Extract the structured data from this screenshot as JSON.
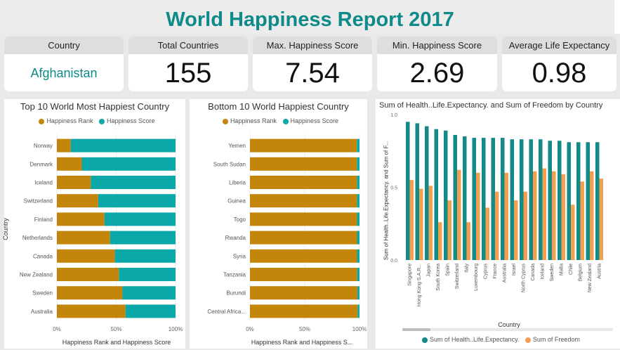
{
  "report": {
    "title": "World Happiness Report 2017"
  },
  "cards": [
    {
      "label": "Country",
      "value": "Afghanistan"
    },
    {
      "label": "Total Countries",
      "value": "155"
    },
    {
      "label": "Max. Happiness Score",
      "value": "7.54"
    },
    {
      "label": "Min. Happiness Score",
      "value": "2.69"
    },
    {
      "label": "Average Life Expectancy",
      "value": "0.98"
    }
  ],
  "colors": {
    "rank": "#c4860a",
    "score": "#0aa8a8",
    "health": "#138a86",
    "freedom": "#f0a050"
  },
  "chart_data": [
    {
      "type": "bar",
      "orientation": "horizontal",
      "stacked": "100%",
      "title": "Top 10 World Most Happiest Country",
      "xlabel": "Happiness Rank and Happiness Score",
      "ylabel": "Country",
      "xticks": [
        "0%",
        "50%",
        "100%"
      ],
      "categories": [
        "Norway",
        "Denmark",
        "Iceland",
        "Switzerland",
        "Finland",
        "Netherlands",
        "Canada",
        "New Zealand",
        "Sweden",
        "Australia"
      ],
      "series": [
        {
          "name": "Happiness Rank",
          "values": [
            1,
            2,
            3,
            4,
            5,
            6,
            7,
            8,
            9,
            10
          ]
        },
        {
          "name": "Happiness Score",
          "values": [
            7.54,
            7.52,
            7.5,
            7.49,
            7.47,
            7.38,
            7.32,
            7.31,
            7.28,
            7.28
          ]
        }
      ]
    },
    {
      "type": "bar",
      "orientation": "horizontal",
      "stacked": "100%",
      "title": "Bottom 10 World Happiest Country",
      "xlabel": "Happiness Rank and Happiness S...",
      "ylabel": "",
      "xticks": [
        "0%",
        "50%",
        "100%"
      ],
      "categories": [
        "Yemen",
        "South Sudan",
        "Liberia",
        "Guinea",
        "Togo",
        "Rwanda",
        "Syria",
        "Tanzania",
        "Burundi",
        "Central Africa..."
      ],
      "series": [
        {
          "name": "Happiness Rank",
          "values": [
            146,
            147,
            148,
            149,
            150,
            151,
            152,
            153,
            154,
            155
          ]
        },
        {
          "name": "Happiness Score",
          "values": [
            3.59,
            3.59,
            3.53,
            3.51,
            3.5,
            3.47,
            3.46,
            3.35,
            2.91,
            2.69
          ]
        }
      ]
    },
    {
      "type": "bar",
      "orientation": "vertical",
      "title": "Sum of Health..Life.Expectancy. and Sum of Freedom by Country",
      "xlabel": "Country",
      "ylabel": "Sum of Health..Life.Expectancy. and Sum of F...",
      "ylim": [
        0,
        1.0
      ],
      "yticks": [
        "0.0",
        "0.5",
        "1.0"
      ],
      "categories": [
        "Singapore",
        "Hong Kong S.A.R...",
        "Japan",
        "South Korea",
        "Spain",
        "Switzerland",
        "Italy",
        "Luxembourg",
        "Cyprus",
        "France",
        "Australia",
        "Israel",
        "North Cyprus",
        "Canada",
        "Iceland",
        "Sweden",
        "Malta",
        "Chile",
        "Belgium",
        "New Zealand",
        "Austria"
      ],
      "series": [
        {
          "name": "Sum of Health..Life.Expectancy.",
          "values": [
            0.95,
            0.94,
            0.92,
            0.9,
            0.89,
            0.86,
            0.85,
            0.84,
            0.84,
            0.84,
            0.84,
            0.83,
            0.83,
            0.83,
            0.83,
            0.82,
            0.82,
            0.81,
            0.81,
            0.81,
            0.81
          ]
        },
        {
          "name": "Sum of Freedom",
          "values": [
            0.55,
            0.49,
            0.51,
            0.26,
            0.41,
            0.62,
            0.26,
            0.6,
            0.36,
            0.47,
            0.6,
            0.41,
            0.47,
            0.61,
            0.63,
            0.61,
            0.59,
            0.38,
            0.54,
            0.61,
            0.56
          ]
        }
      ]
    }
  ]
}
